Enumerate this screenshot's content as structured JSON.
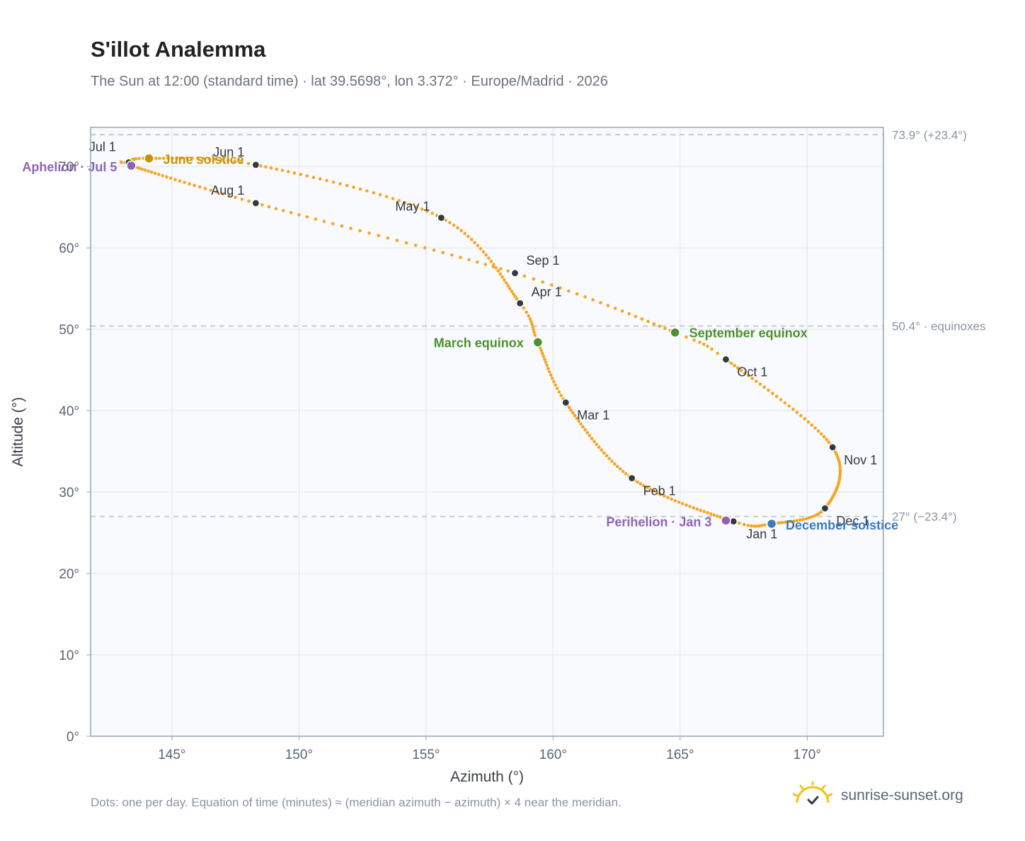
{
  "header": {
    "title": "S'illot Analemma",
    "subtitle": "The Sun at 12:00 (standard time) · lat 39.5698°, lon 3.372° · Europe/Madrid · 2026"
  },
  "footer": {
    "note": "Dots: one per day. Equation of time (minutes) ≈ (meridian azimuth − azimuth) × 4 near the meridian.",
    "brand": "sunrise-sunset.org"
  },
  "colors": {
    "curve": "#f5a623",
    "month_marker": "#333842",
    "equinox": "#4e8f2e",
    "solstice_june": "#c8920c",
    "solstice_december": "#3a7abd",
    "apsis": "#8e63b5",
    "plot_bg": "#f8fafd",
    "grid": "#e4e8ee",
    "ref_line": "#b8c0cb",
    "brand_sun": "#f5c11a"
  },
  "chart_data": {
    "type": "scatter",
    "title": "S'illot Analemma",
    "xlabel": "Azimuth (°)",
    "ylabel": "Altitude (°)",
    "xlim": [
      141.8,
      173.0
    ],
    "ylim": [
      0,
      74.8
    ],
    "xticks": [
      145,
      150,
      155,
      160,
      165,
      170
    ],
    "yticks": [
      0,
      10,
      20,
      30,
      40,
      50,
      60,
      70
    ],
    "grid": true,
    "x_tick_suffix": "°",
    "y_tick_suffix": "°",
    "reference_lines": [
      {
        "y": 73.9,
        "label": "73.9° (+23.4°)"
      },
      {
        "y": 50.4,
        "label": "50.4° · equinoxes"
      },
      {
        "y": 27.0,
        "label": "27° (−23.4°)"
      }
    ],
    "path_doy": [
      1,
      32,
      60,
      79,
      91,
      121,
      152,
      172,
      182,
      186,
      213,
      244,
      266,
      274,
      305,
      335,
      355,
      366
    ],
    "path": [
      [
        167.1,
        26.4
      ],
      [
        163.1,
        31.7
      ],
      [
        160.5,
        41.0
      ],
      [
        159.4,
        48.4
      ],
      [
        158.7,
        53.2
      ],
      [
        155.6,
        63.7
      ],
      [
        148.3,
        70.2
      ],
      [
        144.1,
        71.0
      ],
      [
        143.3,
        70.5
      ],
      [
        143.4,
        70.1
      ],
      [
        148.3,
        65.5
      ],
      [
        158.5,
        56.9
      ],
      [
        164.8,
        49.6
      ],
      [
        166.8,
        46.3
      ],
      [
        171.0,
        35.5
      ],
      [
        170.7,
        28.0
      ],
      [
        168.6,
        26.1
      ],
      [
        167.1,
        26.4
      ]
    ],
    "month_markers": [
      {
        "label": "Jan 1",
        "x": 167.1,
        "y": 26.4
      },
      {
        "label": "Feb 1",
        "x": 163.1,
        "y": 31.7
      },
      {
        "label": "Mar 1",
        "x": 160.5,
        "y": 41.0
      },
      {
        "label": "Apr 1",
        "x": 158.7,
        "y": 53.2
      },
      {
        "label": "May 1",
        "x": 155.6,
        "y": 63.7
      },
      {
        "label": "Jun 1",
        "x": 148.3,
        "y": 70.2
      },
      {
        "label": "Jul 1",
        "x": 143.3,
        "y": 70.5
      },
      {
        "label": "Aug 1",
        "x": 148.3,
        "y": 65.5
      },
      {
        "label": "Sep 1",
        "x": 158.5,
        "y": 56.9
      },
      {
        "label": "Oct 1",
        "x": 166.8,
        "y": 46.3
      },
      {
        "label": "Nov 1",
        "x": 171.0,
        "y": 35.5
      },
      {
        "label": "Dec 1",
        "x": 170.7,
        "y": 28.0
      }
    ],
    "events": [
      {
        "label": "March equinox",
        "x": 159.4,
        "y": 48.4,
        "kind": "equinox"
      },
      {
        "label": "September equinox",
        "x": 164.8,
        "y": 49.6,
        "kind": "equinox"
      },
      {
        "label": "June solstice",
        "x": 144.1,
        "y": 71.0,
        "kind": "solstice_june"
      },
      {
        "label": "December solstice",
        "x": 168.6,
        "y": 26.1,
        "kind": "solstice_december"
      },
      {
        "label": "Aphelion · Jul 5",
        "x": 143.4,
        "y": 70.1,
        "kind": "apsis"
      },
      {
        "label": "Perihelion · Jan 3",
        "x": 166.8,
        "y": 26.5,
        "kind": "apsis"
      }
    ]
  }
}
